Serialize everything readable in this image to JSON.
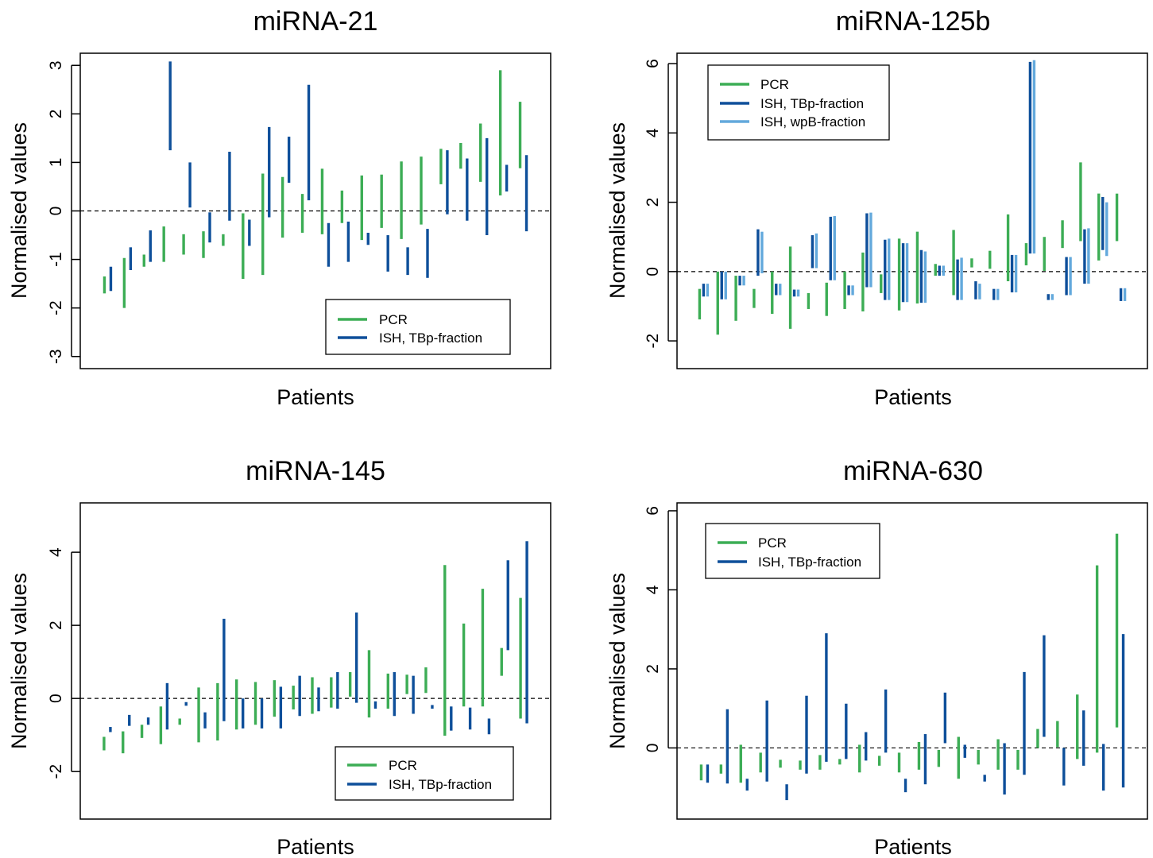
{
  "colors": {
    "PCR": "#3cad55",
    "ISH_TBp": "#0e4f9a",
    "ISH_wpB": "#63a9dc",
    "axis": "#000000",
    "reference_line": "#000000"
  },
  "chart_data": [
    {
      "type": "range-bar",
      "title": "miRNA-21",
      "xlabel": "Patients",
      "ylabel": "Normalised values",
      "ylim": [
        -3.25,
        3.25
      ],
      "yticks": [
        "-3",
        "-2",
        "-1",
        "0",
        "1",
        "2",
        "3"
      ],
      "reference_line": 0,
      "legend_position": "bottom-right",
      "series": [
        {
          "name": "PCR",
          "color": "#3cad55"
        },
        {
          "name": "ISH, TBp-fraction",
          "color": "#0e4f9a"
        }
      ],
      "patients": [
        [
          [
            -1.35,
            -1.7
          ],
          [
            -1.15,
            -1.65
          ]
        ],
        [
          [
            -0.97,
            -2.0
          ],
          [
            -0.75,
            -1.22
          ]
        ],
        [
          [
            -0.9,
            -1.15
          ],
          [
            -0.4,
            -1.05
          ]
        ],
        [
          [
            -0.32,
            -1.05
          ],
          [
            3.08,
            1.25
          ]
        ],
        [
          [
            -0.48,
            -0.9
          ],
          [
            1.0,
            0.07
          ]
        ],
        [
          [
            -0.42,
            -0.97
          ],
          [
            -0.03,
            -0.65
          ]
        ],
        [
          [
            -0.48,
            -0.72
          ],
          [
            1.22,
            -0.2
          ]
        ],
        [
          [
            -0.05,
            -1.4
          ],
          [
            -0.18,
            -0.72
          ]
        ],
        [
          [
            0.77,
            -1.32
          ],
          [
            1.73,
            -0.13
          ]
        ],
        [
          [
            0.7,
            -0.55
          ],
          [
            1.53,
            0.58
          ]
        ],
        [
          [
            0.35,
            -0.45
          ],
          [
            2.6,
            0.22
          ]
        ],
        [
          [
            0.87,
            -0.48
          ],
          [
            -0.25,
            -1.15
          ]
        ],
        [
          [
            0.42,
            -0.25
          ],
          [
            -0.22,
            -1.05
          ]
        ],
        [
          [
            0.73,
            -0.6
          ],
          [
            -0.45,
            -0.7
          ]
        ],
        [
          [
            0.75,
            -0.35
          ],
          [
            -0.5,
            -1.25
          ]
        ],
        [
          [
            1.02,
            -0.58
          ],
          [
            -0.75,
            -1.32
          ]
        ],
        [
          [
            1.12,
            -0.28
          ],
          [
            -0.37,
            -1.38
          ]
        ],
        [
          [
            1.28,
            0.55
          ],
          [
            1.25,
            -0.07
          ]
        ],
        [
          [
            1.4,
            0.87
          ],
          [
            1.08,
            -0.2
          ]
        ],
        [
          [
            1.8,
            0.6
          ],
          [
            1.5,
            -0.5
          ]
        ],
        [
          [
            2.9,
            0.32
          ],
          [
            0.95,
            0.4
          ]
        ],
        [
          [
            2.25,
            0.88
          ],
          [
            1.15,
            -0.42
          ]
        ]
      ]
    },
    {
      "type": "range-bar",
      "title": "miRNA-125b",
      "xlabel": "Patients",
      "ylabel": "Normalised values",
      "ylim": [
        -2.8,
        6.3
      ],
      "yticks": [
        "-2",
        "0",
        "2",
        "4",
        "6"
      ],
      "reference_line": 0,
      "legend_position": "top-left",
      "series": [
        {
          "name": "PCR",
          "color": "#3cad55"
        },
        {
          "name": "ISH, TBp-fraction",
          "color": "#0e4f9a"
        },
        {
          "name": "ISH, wpB-fraction",
          "color": "#63a9dc"
        }
      ],
      "patients": [
        [
          [
            -0.5,
            -1.38
          ],
          [
            -0.35,
            -0.72
          ],
          [
            -0.35,
            -0.72
          ]
        ],
        [
          [
            0.0,
            -1.82
          ],
          [
            0.0,
            -0.8
          ],
          [
            0.0,
            -0.8
          ]
        ],
        [
          [
            -0.12,
            -1.42
          ],
          [
            -0.12,
            -0.4
          ],
          [
            -0.12,
            -0.4
          ]
        ],
        [
          [
            -0.5,
            -1.05
          ],
          [
            1.22,
            -0.12
          ],
          [
            1.15,
            -0.05
          ]
        ],
        [
          [
            0.0,
            -1.22
          ],
          [
            -0.35,
            -0.68
          ],
          [
            -0.35,
            -0.68
          ]
        ],
        [
          [
            0.72,
            -1.65
          ],
          [
            -0.52,
            -0.72
          ],
          [
            -0.52,
            -0.72
          ]
        ],
        [
          [
            -0.62,
            -1.08
          ],
          [
            1.05,
            0.1
          ],
          [
            1.1,
            0.1
          ]
        ],
        [
          [
            -0.32,
            -1.28
          ],
          [
            1.58,
            -0.25
          ],
          [
            1.6,
            -0.25
          ]
        ],
        [
          [
            0.0,
            -1.08
          ],
          [
            -0.4,
            -0.68
          ],
          [
            -0.4,
            -0.68
          ]
        ],
        [
          [
            0.55,
            -1.15
          ],
          [
            1.68,
            -0.45
          ],
          [
            1.7,
            -0.45
          ]
        ],
        [
          [
            -0.08,
            -0.62
          ],
          [
            0.92,
            -0.82
          ],
          [
            0.95,
            -0.82
          ]
        ],
        [
          [
            0.95,
            -1.12
          ],
          [
            0.82,
            -0.88
          ],
          [
            0.82,
            -0.88
          ]
        ],
        [
          [
            1.15,
            -0.92
          ],
          [
            0.62,
            -0.9
          ],
          [
            0.58,
            -0.9
          ]
        ],
        [
          [
            0.22,
            -0.12
          ],
          [
            0.17,
            -0.12
          ],
          [
            0.17,
            -0.12
          ]
        ],
        [
          [
            1.2,
            -0.68
          ],
          [
            0.35,
            -0.82
          ],
          [
            0.4,
            -0.82
          ]
        ],
        [
          [
            0.38,
            0.12
          ],
          [
            -0.28,
            -0.8
          ],
          [
            -0.35,
            -0.8
          ]
        ],
        [
          [
            0.6,
            0.08
          ],
          [
            -0.5,
            -0.82
          ],
          [
            -0.5,
            -0.82
          ]
        ],
        [
          [
            1.65,
            -0.28
          ],
          [
            0.48,
            -0.6
          ],
          [
            0.48,
            -0.6
          ]
        ],
        [
          [
            0.82,
            0.18
          ],
          [
            6.05,
            0.52
          ],
          [
            6.1,
            0.52
          ]
        ],
        [
          [
            1.0,
            0.02
          ],
          [
            -0.65,
            -0.82
          ],
          [
            -0.65,
            -0.82
          ]
        ],
        [
          [
            1.48,
            0.68
          ],
          [
            0.42,
            -0.68
          ],
          [
            0.42,
            -0.68
          ]
        ],
        [
          [
            3.15,
            0.88
          ],
          [
            1.22,
            -0.35
          ],
          [
            1.25,
            -0.35
          ]
        ],
        [
          [
            2.25,
            0.32
          ],
          [
            2.15,
            0.62
          ],
          [
            2.0,
            0.45
          ]
        ],
        [
          [
            2.25,
            0.88
          ],
          [
            -0.48,
            -0.85
          ],
          [
            -0.48,
            -0.85
          ]
        ]
      ]
    },
    {
      "type": "range-bar",
      "title": "miRNA-145",
      "xlabel": "Patients",
      "ylabel": "Normalised values",
      "ylim": [
        -3.3,
        5.35
      ],
      "yticks": [
        "-2",
        "0",
        "2",
        "4"
      ],
      "reference_line": 0,
      "legend_position": "bottom-right",
      "series": [
        {
          "name": "PCR",
          "color": "#3cad55"
        },
        {
          "name": "ISH, TBp-fraction",
          "color": "#0e4f9a"
        }
      ],
      "patients": [
        [
          [
            -1.05,
            -1.42
          ],
          [
            -0.78,
            -0.92
          ]
        ],
        [
          [
            -0.9,
            -1.5
          ],
          [
            -0.45,
            -0.75
          ]
        ],
        [
          [
            -0.72,
            -1.08
          ],
          [
            -0.52,
            -0.72
          ]
        ],
        [
          [
            -0.22,
            -1.25
          ],
          [
            0.42,
            -0.85
          ]
        ],
        [
          [
            -0.55,
            -0.72
          ],
          [
            -0.1,
            -0.2
          ]
        ],
        [
          [
            0.3,
            -1.2
          ],
          [
            -0.38,
            -0.82
          ]
        ],
        [
          [
            0.42,
            -1.15
          ],
          [
            2.18,
            -0.62
          ]
        ],
        [
          [
            0.52,
            -0.85
          ],
          [
            0.0,
            -0.82
          ]
        ],
        [
          [
            0.45,
            -0.72
          ],
          [
            0.0,
            -0.82
          ]
        ],
        [
          [
            0.5,
            -0.5
          ],
          [
            0.32,
            -0.82
          ]
        ],
        [
          [
            0.35,
            -0.3
          ],
          [
            0.62,
            -0.48
          ]
        ],
        [
          [
            0.58,
            -0.42
          ],
          [
            0.3,
            -0.35
          ]
        ],
        [
          [
            0.58,
            -0.25
          ],
          [
            0.72,
            -0.28
          ]
        ],
        [
          [
            0.72,
            0.05
          ],
          [
            2.35,
            -0.12
          ]
        ],
        [
          [
            1.32,
            -0.52
          ],
          [
            -0.08,
            -0.28
          ]
        ],
        [
          [
            0.68,
            -0.28
          ],
          [
            0.72,
            -0.48
          ]
        ],
        [
          [
            0.65,
            0.12
          ],
          [
            0.62,
            -0.42
          ]
        ],
        [
          [
            0.85,
            0.15
          ],
          [
            -0.18,
            -0.28
          ]
        ],
        [
          [
            3.65,
            -1.02
          ],
          [
            -0.22,
            -0.88
          ]
        ],
        [
          [
            2.05,
            -0.22
          ],
          [
            -0.25,
            -0.85
          ]
        ],
        [
          [
            3.0,
            -0.22
          ],
          [
            -0.55,
            -0.98
          ]
        ],
        [
          [
            1.38,
            0.62
          ],
          [
            3.78,
            1.32
          ]
        ],
        [
          [
            2.75,
            -0.55
          ],
          [
            4.3,
            -0.68
          ]
        ]
      ]
    },
    {
      "type": "range-bar",
      "title": "miRNA-630",
      "xlabel": "Patients",
      "ylabel": "Normalised values",
      "ylim": [
        -1.8,
        6.2
      ],
      "yticks": [
        "0",
        "2",
        "4",
        "6"
      ],
      "reference_line": 0,
      "legend_position": "top-left",
      "series": [
        {
          "name": "PCR",
          "color": "#3cad55"
        },
        {
          "name": "ISH, TBp-fraction",
          "color": "#0e4f9a"
        }
      ],
      "patients": [
        [
          [
            -0.42,
            -0.82
          ],
          [
            -0.42,
            -0.88
          ]
        ],
        [
          [
            -0.42,
            -0.65
          ],
          [
            0.98,
            -0.9
          ]
        ],
        [
          [
            0.08,
            -0.88
          ],
          [
            -0.78,
            -1.08
          ]
        ],
        [
          [
            -0.12,
            -0.62
          ],
          [
            1.2,
            -0.85
          ]
        ],
        [
          [
            -0.3,
            -0.5
          ],
          [
            -0.92,
            -1.32
          ]
        ],
        [
          [
            -0.32,
            -0.55
          ],
          [
            1.32,
            -0.65
          ]
        ],
        [
          [
            -0.18,
            -0.55
          ],
          [
            2.9,
            -0.35
          ]
        ],
        [
          [
            -0.28,
            -0.42
          ],
          [
            1.12,
            -0.28
          ]
        ],
        [
          [
            0.08,
            -0.62
          ],
          [
            0.4,
            -0.32
          ]
        ],
        [
          [
            -0.2,
            -0.45
          ],
          [
            1.48,
            -0.12
          ]
        ],
        [
          [
            -0.12,
            -0.62
          ],
          [
            -0.78,
            -1.12
          ]
        ],
        [
          [
            0.15,
            -0.55
          ],
          [
            0.35,
            -0.92
          ]
        ],
        [
          [
            -0.05,
            -0.48
          ],
          [
            1.4,
            0.12
          ]
        ],
        [
          [
            0.28,
            -0.78
          ],
          [
            0.08,
            -0.25
          ]
        ],
        [
          [
            -0.05,
            -0.42
          ],
          [
            -0.68,
            -0.85
          ]
        ],
        [
          [
            0.22,
            -0.55
          ],
          [
            0.12,
            -1.18
          ]
        ],
        [
          [
            -0.05,
            -0.55
          ],
          [
            1.92,
            -0.68
          ]
        ],
        [
          [
            0.48,
            0.0
          ],
          [
            2.85,
            0.28
          ]
        ],
        [
          [
            0.68,
            0.02
          ],
          [
            0.0,
            -0.95
          ]
        ],
        [
          [
            1.35,
            -0.28
          ],
          [
            0.95,
            -0.45
          ]
        ],
        [
          [
            4.62,
            -0.12
          ],
          [
            0.1,
            -1.08
          ]
        ],
        [
          [
            5.42,
            0.52
          ],
          [
            2.88,
            -1.0
          ]
        ]
      ]
    }
  ]
}
